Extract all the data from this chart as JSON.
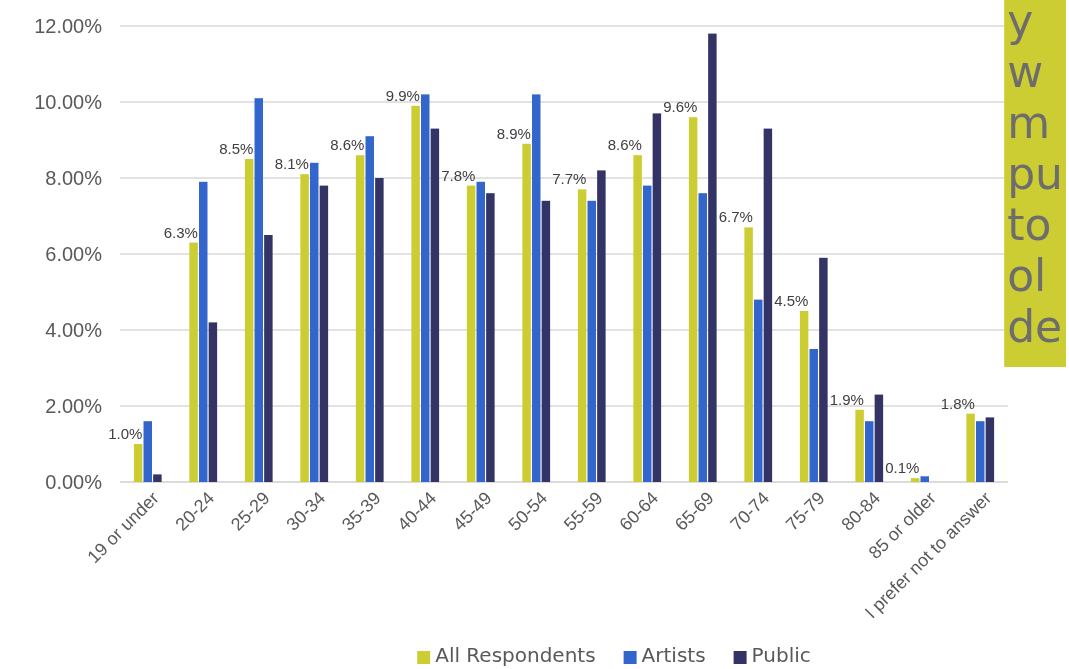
{
  "chart_data": {
    "type": "bar",
    "categories": [
      "19 or under",
      "20-24",
      "25-29",
      "30-34",
      "35-39",
      "40-44",
      "45-49",
      "50-54",
      "55-59",
      "60-64",
      "65-69",
      "70-74",
      "75-79",
      "80-84",
      "85 or older",
      "I prefer not to answer"
    ],
    "series": [
      {
        "name": "All Respondents",
        "color": "#cccc33",
        "values": [
          1.0,
          6.3,
          8.5,
          8.1,
          8.6,
          9.9,
          7.8,
          8.9,
          7.7,
          8.6,
          9.6,
          6.7,
          4.5,
          1.9,
          0.1,
          1.8
        ],
        "value_labels": [
          "1.0%",
          "6.3%",
          "8.5%",
          "8.1%",
          "8.6%",
          "9.9%",
          "7.8%",
          "8.9%",
          "7.7%",
          "8.6%",
          "9.6%",
          "6.7%",
          "4.5%",
          "1.9%",
          "0.1%",
          "1.8%"
        ]
      },
      {
        "name": "Artists",
        "color": "#3366cc",
        "values": [
          1.6,
          7.9,
          10.1,
          8.4,
          9.1,
          10.2,
          7.9,
          10.2,
          7.4,
          7.8,
          7.6,
          4.8,
          3.5,
          1.6,
          0.15,
          1.6
        ]
      },
      {
        "name": "Public",
        "color": "#333366",
        "values": [
          0.2,
          4.2,
          6.5,
          7.8,
          8.0,
          9.3,
          7.6,
          7.4,
          8.2,
          9.7,
          11.8,
          9.3,
          5.9,
          2.3,
          0,
          1.7
        ]
      }
    ],
    "ylim": [
      0,
      12
    ],
    "yticks": [
      {
        "value": 0,
        "label": "0.00%"
      },
      {
        "value": 2,
        "label": "2.00%"
      },
      {
        "value": 4,
        "label": "4.00%"
      },
      {
        "value": 6,
        "label": "6.00%"
      },
      {
        "value": 8,
        "label": "8.00%"
      },
      {
        "value": 10,
        "label": "10.00%"
      },
      {
        "value": 12,
        "label": "12.00%"
      }
    ],
    "grid": "y",
    "legend": "bottom",
    "annotations": [
      "y w m pu to ol de"
    ]
  }
}
